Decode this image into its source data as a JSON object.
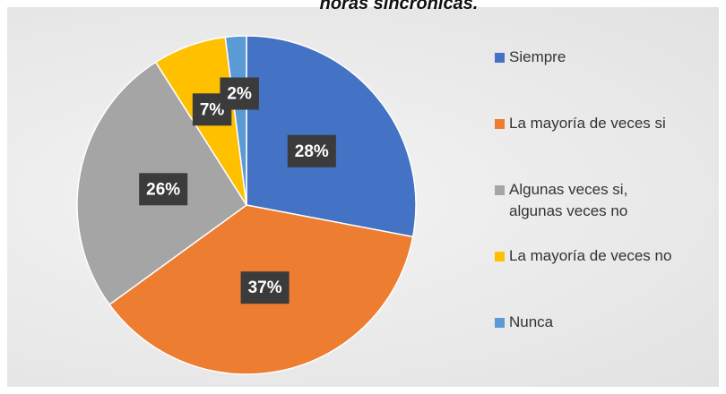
{
  "chart_data": {
    "type": "pie",
    "title": "horas sincrónicas.",
    "categories": [
      "Siempre",
      "La mayoría de veces si",
      "Algunas veces si, algunas veces no",
      "La mayoría de veces no",
      "Nunca"
    ],
    "values": [
      28,
      37,
      26,
      7,
      2
    ],
    "value_labels": [
      "28%",
      "37%",
      "26%",
      "7%",
      "2%"
    ],
    "colors": [
      "#4472c4",
      "#ed7d31",
      "#a5a5a5",
      "#ffc000",
      "#5b9bd5"
    ],
    "legend": "right"
  }
}
